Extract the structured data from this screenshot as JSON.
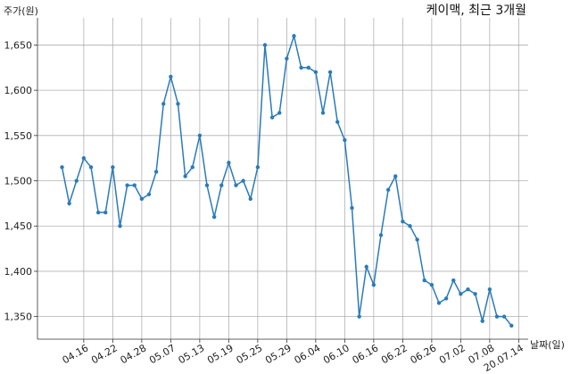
{
  "chart_data": {
    "type": "line",
    "title": "케이맥, 최근 3개월",
    "xlabel": "날짜(일)",
    "ylabel": "주가(원)",
    "ylim": [
      1325,
      1680
    ],
    "yticks": [
      1350,
      1400,
      1450,
      1500,
      1550,
      1600,
      1650
    ],
    "ytick_labels": [
      "1,350",
      "1,400",
      "1,450",
      "1,500",
      "1,550",
      "1,600",
      "1,650"
    ],
    "xtick_labels": [
      "04.16",
      "04.22",
      "04.28",
      "05.07",
      "05.13",
      "05.19",
      "05.25",
      "05.29",
      "06.04",
      "06.10",
      "06.16",
      "06.22",
      "06.26",
      "07.02",
      "07.08",
      "20.07.14"
    ],
    "xtick_index": [
      3,
      7,
      11,
      15,
      19,
      23,
      27,
      31,
      35,
      39,
      43,
      47,
      51,
      55,
      59,
      63
    ],
    "grid": true,
    "line_color": "#2b7bb9",
    "series": [
      {
        "values": [
          1515,
          1475,
          1500,
          1525,
          1515,
          1465,
          1465,
          1515,
          1450,
          1495,
          1495,
          1480,
          1485,
          1510,
          1585,
          1615,
          1585,
          1505,
          1515,
          1550,
          1495,
          1460,
          1495,
          1520,
          1495,
          1500,
          1480,
          1515,
          1650,
          1570,
          1575,
          1635,
          1660,
          1625,
          1625,
          1620,
          1575,
          1620,
          1565,
          1545,
          1470,
          1350,
          1405,
          1385,
          1440,
          1490,
          1505,
          1455,
          1450,
          1435,
          1390,
          1385,
          1365,
          1370,
          1390,
          1375,
          1380,
          1375,
          1345,
          1380,
          1350,
          1350,
          1340
        ]
      }
    ]
  }
}
